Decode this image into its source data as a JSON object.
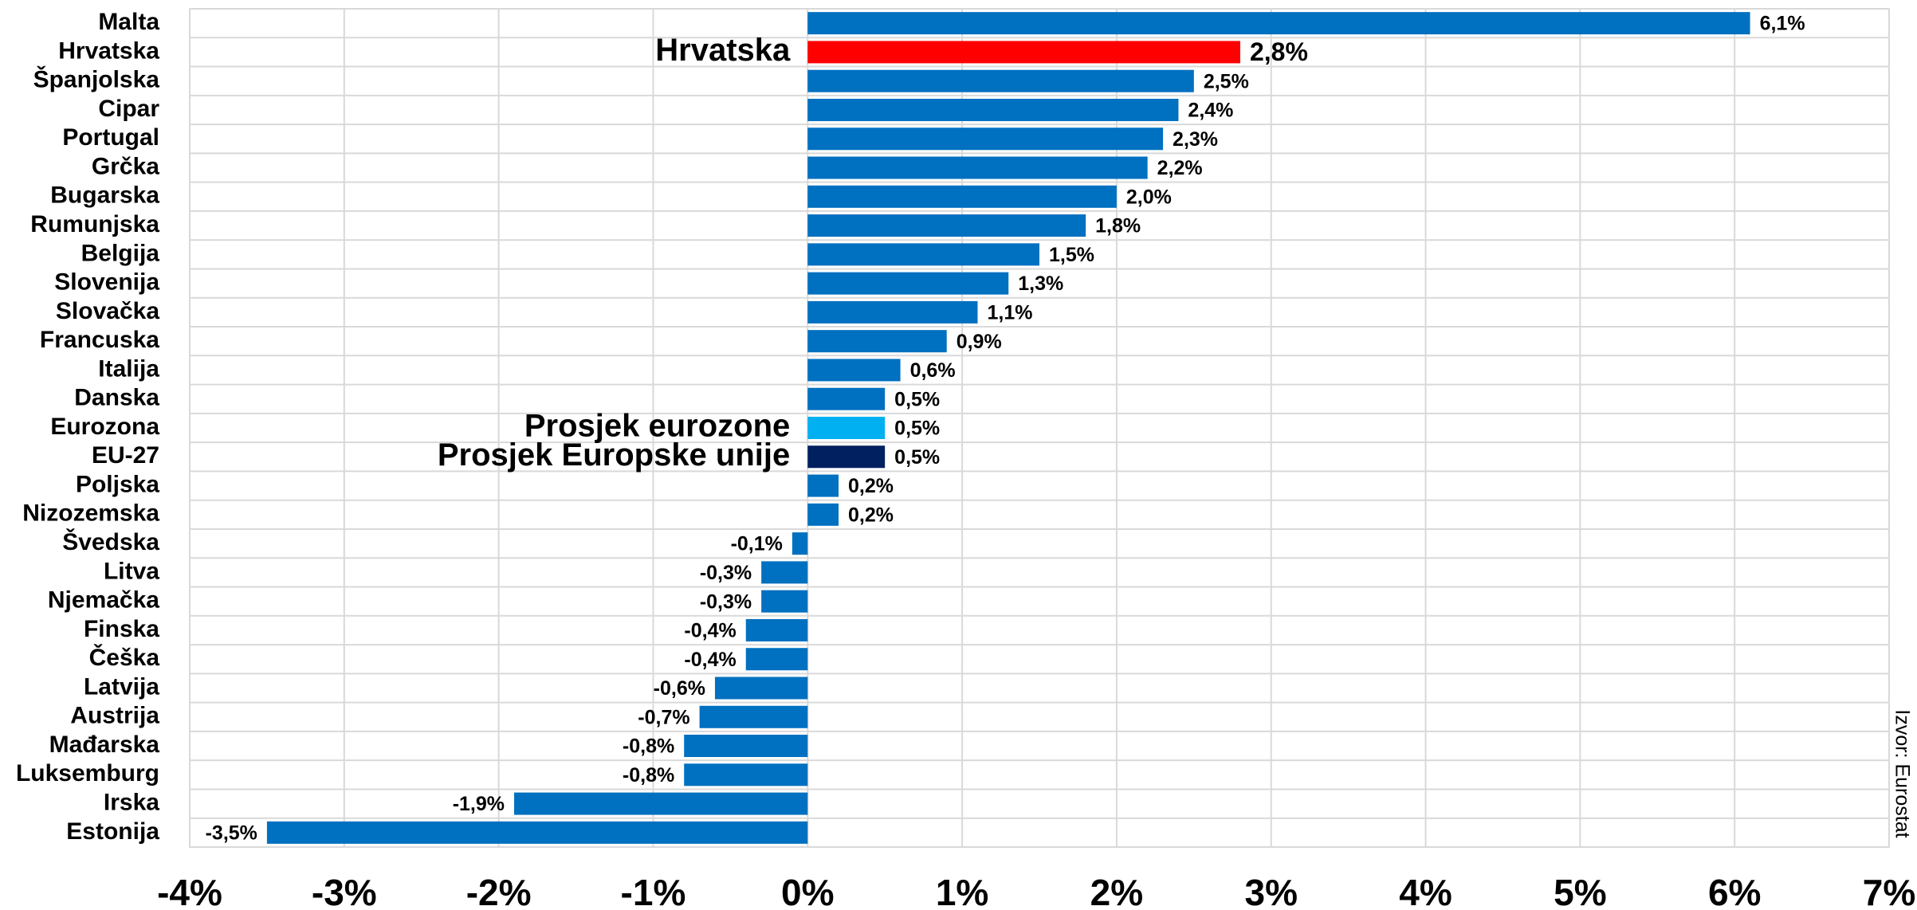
{
  "chart_data": {
    "type": "hbar",
    "categories": [
      "Malta",
      "Hrvatska",
      "Španjolska",
      "Cipar",
      "Portugal",
      "Grčka",
      "Bugarska",
      "Rumunjska",
      "Belgija",
      "Slovenija",
      "Slovačka",
      "Francuska",
      "Italija",
      "Danska",
      "Eurozona",
      "EU-27",
      "Poljska",
      "Nizozemska",
      "Švedska",
      "Litva",
      "Njemačka",
      "Finska",
      "Češka",
      "Latvija",
      "Austrija",
      "Mađarska",
      "Luksemburg",
      "Irska",
      "Estonija"
    ],
    "values": [
      6.1,
      2.8,
      2.5,
      2.4,
      2.3,
      2.2,
      2.0,
      1.8,
      1.5,
      1.3,
      1.1,
      0.9,
      0.6,
      0.5,
      0.5,
      0.5,
      0.2,
      0.2,
      -0.1,
      -0.3,
      -0.3,
      -0.4,
      -0.4,
      -0.6,
      -0.7,
      -0.8,
      -0.8,
      -1.9,
      -3.5
    ],
    "value_labels": [
      "6,1%",
      "2,8%",
      "2,5%",
      "2,4%",
      "2,3%",
      "2,2%",
      "2,0%",
      "1,8%",
      "1,5%",
      "1,3%",
      "1,1%",
      "0,9%",
      "0,6%",
      "0,5%",
      "0,5%",
      "0,5%",
      "0,2%",
      "0,2%",
      "-0,1%",
      "-0,3%",
      "-0,3%",
      "-0,4%",
      "-0,4%",
      "-0,6%",
      "-0,7%",
      "-0,8%",
      "-0,8%",
      "-1,9%",
      "-3,5%"
    ],
    "color": "#0070c0",
    "colors": [
      "#0070c0",
      "#ff0000",
      "#0070c0",
      "#0070c0",
      "#0070c0",
      "#0070c0",
      "#0070c0",
      "#0070c0",
      "#0070c0",
      "#0070c0",
      "#0070c0",
      "#0070c0",
      "#0070c0",
      "#0070c0",
      "#00b0f0",
      "#002060",
      "#0070c0",
      "#0070c0",
      "#0070c0",
      "#0070c0",
      "#0070c0",
      "#0070c0",
      "#0070c0",
      "#0070c0",
      "#0070c0",
      "#0070c0",
      "#0070c0",
      "#0070c0",
      "#0070c0"
    ],
    "xlim": [
      -4,
      7
    ],
    "xticks": [
      {
        "value": -4,
        "label": "-4%"
      },
      {
        "value": -3,
        "label": "-3%"
      },
      {
        "value": -2,
        "label": "-2%"
      },
      {
        "value": -1,
        "label": "-1%"
      },
      {
        "value": 0,
        "label": "0%"
      },
      {
        "value": 1,
        "label": "1%"
      },
      {
        "value": 2,
        "label": "2%"
      },
      {
        "value": 3,
        "label": "3%"
      },
      {
        "value": 4,
        "label": "4%"
      },
      {
        "value": 5,
        "label": "5%"
      },
      {
        "value": 6,
        "label": "6%"
      },
      {
        "value": 7,
        "label": "7%"
      }
    ],
    "grid": true,
    "annotations": [
      {
        "text": "Hrvatska",
        "category": "Hrvatska",
        "color": "#ff0000",
        "value_label_color": "#ff0000"
      },
      {
        "text": "Prosjek eurozone",
        "category": "Eurozona",
        "color": "#00b0f0"
      },
      {
        "text": "Prosjek Europske unije",
        "category": "EU-27",
        "color": "#002060"
      }
    ],
    "source": "Izvor: Eurostat"
  }
}
